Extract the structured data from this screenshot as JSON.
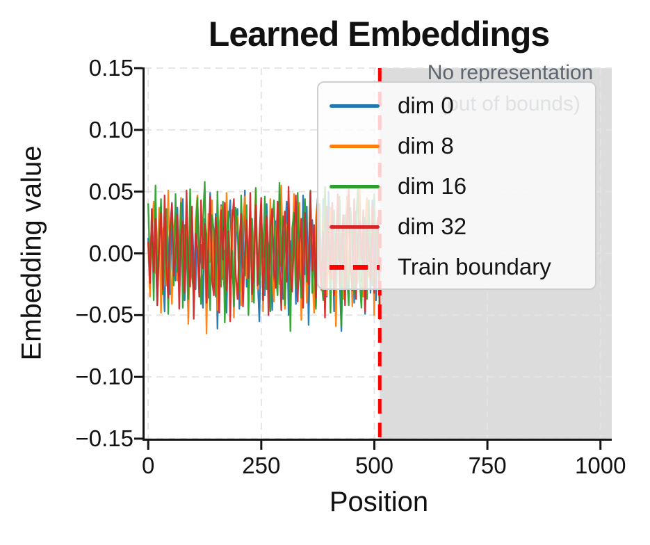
{
  "chart_data": {
    "type": "line",
    "title": "Learned Embeddings",
    "xlabel": "Position",
    "ylabel": "Embedding value",
    "xlim": [
      -8,
      1025
    ],
    "ylim": [
      -0.15,
      0.15
    ],
    "grid": true,
    "legend_position": "upper right inside",
    "xticks": [
      0,
      250,
      500,
      750,
      1000
    ],
    "xtick_labels": [
      "0",
      "250",
      "500",
      "750",
      "1000"
    ],
    "yticks": [
      0.15,
      0.1,
      0.05,
      0.0,
      -0.05,
      -0.1,
      -0.15
    ],
    "ytick_labels": [
      "0.15",
      "0.10",
      "0.05",
      "0.00",
      "−0.05",
      "−0.10",
      "−0.15"
    ],
    "train_boundary": {
      "x": 512,
      "label": "Train boundary",
      "color": "#ff0000",
      "style": "dashed"
    },
    "out_of_bounds_region": {
      "x_start": 512,
      "x_end": 1025,
      "fill": "#808080",
      "opacity": 0.28,
      "annotation_line1": "No representation",
      "annotation_line2": "(out of bounds)",
      "annotation_color": "#5d6570"
    },
    "series": [
      {
        "name": "dim 0",
        "color": "#1f77b4",
        "x_start": 0,
        "x_step": 4.03,
        "values": [
          0.012,
          -0.028,
          0.035,
          -0.011,
          0.004,
          -0.042,
          0.019,
          0.038,
          -0.015,
          -0.047,
          0.026,
          0.008,
          -0.033,
          0.041,
          -0.006,
          -0.022,
          0.037,
          -0.018,
          0.003,
          0.044,
          -0.038,
          0.013,
          -0.052,
          0.021,
          0.034,
          -0.009,
          -0.029,
          0.046,
          -0.016,
          0.007,
          -0.044,
          0.028,
          0.015,
          -0.036,
          0.049,
          -0.004,
          -0.025,
          0.032,
          -0.061,
          0.011,
          0.039,
          -0.021,
          0.002,
          -0.048,
          0.024,
          0.043,
          -0.013,
          -0.031,
          0.006,
          0.036,
          -0.045,
          0.017,
          -0.008,
          0.051,
          -0.027,
          -0.003,
          0.029,
          -0.039,
          0.014,
          0.045,
          -0.019,
          -0.055,
          0.023,
          0.009,
          -0.034,
          0.04,
          -0.012,
          0.031,
          -0.046,
          0.005,
          0.026,
          -0.024,
          0.048,
          -0.007,
          -0.037,
          0.018,
          0.042,
          -0.05,
          0.01,
          -0.015,
          0.033,
          -0.041,
          0.022,
          0.001,
          -0.03,
          0.047,
          -0.017,
          0.038,
          -0.058,
          0.013,
          0.027,
          -0.005,
          -0.043,
          0.03,
          0.016,
          -0.026,
          0.044,
          -0.01,
          -0.035,
          0.05,
          -0.002,
          0.025,
          -0.047,
          0.012,
          0.036,
          -0.02,
          -0.063,
          0.031,
          0.008,
          -0.028,
          0.045,
          -0.014,
          0.02,
          -0.04,
          0.034,
          -0.006,
          0.041,
          -0.023,
          0.003,
          -0.049,
          0.027,
          0.015,
          -0.032,
          0.043,
          -0.001,
          -0.038,
          0.024,
          -0.053
        ]
      },
      {
        "name": "dim 8",
        "color": "#ff7f0e",
        "x_start": 0,
        "x_step": 4.03,
        "values": [
          0.008,
          -0.035,
          0.021,
          0.042,
          -0.016,
          -0.003,
          0.037,
          -0.048,
          0.014,
          0.029,
          -0.026,
          0.051,
          -0.009,
          -0.041,
          0.018,
          0.033,
          -0.022,
          0.006,
          0.045,
          -0.031,
          -0.012,
          0.039,
          -0.057,
          0.016,
          0.002,
          -0.044,
          0.028,
          0.047,
          -0.019,
          -0.036,
          0.011,
          0.024,
          -0.065,
          0.032,
          -0.007,
          0.043,
          -0.028,
          0.013,
          -0.046,
          0.021,
          0.038,
          -0.015,
          -0.033,
          0.049,
          0.004,
          -0.024,
          0.035,
          -0.052,
          0.017,
          0.03,
          -0.011,
          -0.042,
          0.025,
          0.046,
          -0.02,
          -0.001,
          0.034,
          -0.038,
          0.009,
          0.052,
          -0.029,
          -0.014,
          0.04,
          -0.047,
          0.023,
          0.005,
          -0.032,
          0.044,
          -0.018,
          -0.039,
          0.012,
          0.036,
          -0.025,
          0.055,
          -0.008,
          -0.045,
          0.019,
          0.031,
          -0.036,
          0.003,
          0.048,
          -0.023,
          -0.01,
          0.041,
          -0.054,
          0.015,
          0.026,
          -0.04,
          0.007,
          0.033,
          -0.017,
          -0.048,
          0.029,
          0.044,
          -0.013,
          -0.03,
          0.02,
          0.05,
          -0.034,
          -0.004,
          0.037,
          -0.021,
          0.01,
          -0.059,
          0.027,
          0.042,
          -0.016,
          -0.037,
          0.006,
          0.046,
          -0.027,
          0.018,
          -0.043,
          0.031,
          0.001,
          -0.024,
          0.053,
          -0.012,
          -0.035,
          0.022,
          0.045,
          -0.019,
          -0.006,
          0.038,
          -0.05,
          0.016,
          0.028,
          -0.031
        ]
      },
      {
        "name": "dim 16",
        "color": "#2ca02c",
        "x_start": 0,
        "x_step": 4.03,
        "values": [
          0.04,
          -0.012,
          0.027,
          -0.038,
          0.055,
          -0.021,
          0.006,
          0.044,
          -0.033,
          -0.005,
          0.036,
          -0.049,
          0.017,
          0.029,
          -0.026,
          0.048,
          -0.015,
          -0.002,
          0.041,
          -0.044,
          0.023,
          0.009,
          -0.037,
          0.052,
          -0.019,
          -0.03,
          0.013,
          0.045,
          -0.008,
          -0.041,
          0.026,
          0.058,
          -0.024,
          0.004,
          -0.046,
          0.031,
          0.018,
          -0.035,
          0.05,
          -0.011,
          -0.027,
          0.042,
          -0.056,
          0.015,
          0.034,
          -0.022,
          0.002,
          -0.043,
          0.037,
          0.021,
          -0.031,
          0.047,
          -0.006,
          -0.018,
          0.039,
          -0.05,
          0.012,
          0.028,
          -0.04,
          0.053,
          -0.014,
          -0.025,
          0.035,
          -0.003,
          0.046,
          -0.029,
          0.008,
          -0.047,
          0.024,
          0.043,
          -0.017,
          -0.034,
          0.057,
          -0.01,
          0.03,
          -0.042,
          0.005,
          0.038,
          -0.063,
          0.02,
          0.033,
          -0.028,
          0.049,
          -0.013,
          -0.036,
          0.016,
          0.044,
          -0.023,
          -0.001,
          0.051,
          -0.032,
          0.01,
          -0.045,
          0.026,
          0.04,
          -0.02,
          -0.038,
          0.054,
          -0.007,
          0.022,
          -0.048,
          0.014,
          0.035,
          -0.027,
          0.003,
          0.046,
          -0.059,
          0.018,
          0.031,
          -0.016,
          -0.042,
          0.037,
          0.007,
          -0.033,
          0.025,
          0.052,
          -0.021,
          -0.044,
          0.011,
          0.029,
          -0.037,
          0.043,
          0.0,
          -0.026,
          0.048,
          -0.015,
          0.021,
          -0.051
        ]
      },
      {
        "name": "dim 32",
        "color": "#d62728",
        "x_start": 0,
        "x_step": 4.03,
        "values": [
          0.009,
          -0.024,
          0.036,
          -0.015,
          0.028,
          -0.042,
          0.005,
          0.033,
          -0.029,
          0.047,
          -0.011,
          -0.036,
          0.022,
          0.04,
          -0.018,
          -0.003,
          0.031,
          -0.045,
          0.014,
          0.026,
          -0.032,
          0.051,
          -0.007,
          -0.027,
          0.038,
          -0.053,
          0.016,
          0.002,
          -0.035,
          0.043,
          -0.012,
          0.024,
          -0.04,
          0.008,
          0.046,
          -0.022,
          -0.034,
          0.029,
          0.013,
          -0.048,
          0.035,
          -0.005,
          0.041,
          -0.03,
          0.018,
          -0.055,
          0.025,
          0.044,
          -0.016,
          -0.037,
          0.01,
          0.032,
          -0.043,
          0.001,
          0.027,
          -0.02,
          0.049,
          -0.033,
          -0.009,
          0.039,
          -0.026,
          0.015,
          0.045,
          -0.038,
          0.004,
          0.03,
          -0.05,
          0.021,
          0.036,
          -0.013,
          -0.028,
          0.042,
          -0.002,
          -0.046,
          0.019,
          0.034,
          -0.023,
          0.054,
          -0.017,
          -0.031,
          0.011,
          0.047,
          -0.039,
          0.006,
          0.028,
          -0.044,
          0.033,
          -0.008,
          -0.025,
          0.05,
          -0.014,
          0.023,
          -0.036,
          0.045,
          0.003,
          -0.029,
          0.017,
          -0.052,
          0.038,
          0.012,
          -0.02,
          0.041,
          -0.034,
          -0.001,
          0.048,
          -0.026,
          0.007,
          0.031,
          -0.042,
          0.024,
          0.053,
          -0.01,
          -0.03,
          0.044,
          -0.037,
          0.013,
          0.026,
          -0.005,
          0.035,
          -0.047,
          0.02,
          0.002,
          -0.023,
          0.039,
          -0.032,
          0.016,
          0.029,
          -0.041
        ]
      }
    ],
    "legend": {
      "items": [
        {
          "label": "dim 0",
          "color": "#1f77b4",
          "dashed": false
        },
        {
          "label": "dim 8",
          "color": "#ff7f0e",
          "dashed": false
        },
        {
          "label": "dim 16",
          "color": "#2ca02c",
          "dashed": false
        },
        {
          "label": "dim 32",
          "color": "#d62728",
          "dashed": false
        },
        {
          "label": "Train boundary",
          "color": "#ff0000",
          "dashed": true
        }
      ]
    }
  }
}
